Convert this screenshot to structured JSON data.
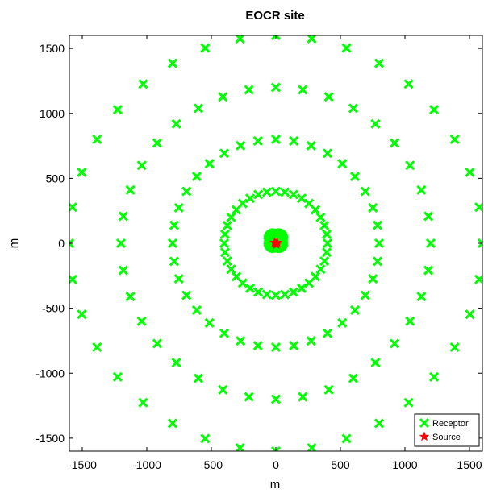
{
  "chart_data": {
    "type": "scatter",
    "title": "EOCR site",
    "xlabel": "m",
    "ylabel": "m",
    "xlim": [
      -1600,
      1600
    ],
    "ylim": [
      -1600,
      1600
    ],
    "xticks": [
      -1500,
      -1000,
      -500,
      0,
      500,
      1000,
      1500
    ],
    "yticks": [
      -1500,
      -1000,
      -500,
      0,
      500,
      1000,
      1500
    ],
    "grid": false,
    "legend_position": "bottom-right",
    "receptor_rings": [
      {
        "radius": 60,
        "count": 36,
        "center": [
          0,
          20
        ]
      },
      {
        "radius": 400,
        "count": 36,
        "center": [
          0,
          0
        ]
      },
      {
        "radius": 800,
        "count": 36,
        "center": [
          0,
          0
        ]
      },
      {
        "radius": 1200,
        "count": 36,
        "center": [
          0,
          0
        ]
      },
      {
        "radius": 1600,
        "count": 36,
        "center": [
          0,
          0
        ]
      }
    ],
    "source_points": [
      [
        0,
        0
      ],
      [
        -10,
        5
      ],
      [
        10,
        5
      ],
      [
        5,
        -10
      ]
    ],
    "series": [
      {
        "name": "Receptor",
        "marker": "x",
        "color": "#00ff00"
      },
      {
        "name": "Source",
        "marker": "star",
        "color": "#ff0000"
      }
    ]
  }
}
